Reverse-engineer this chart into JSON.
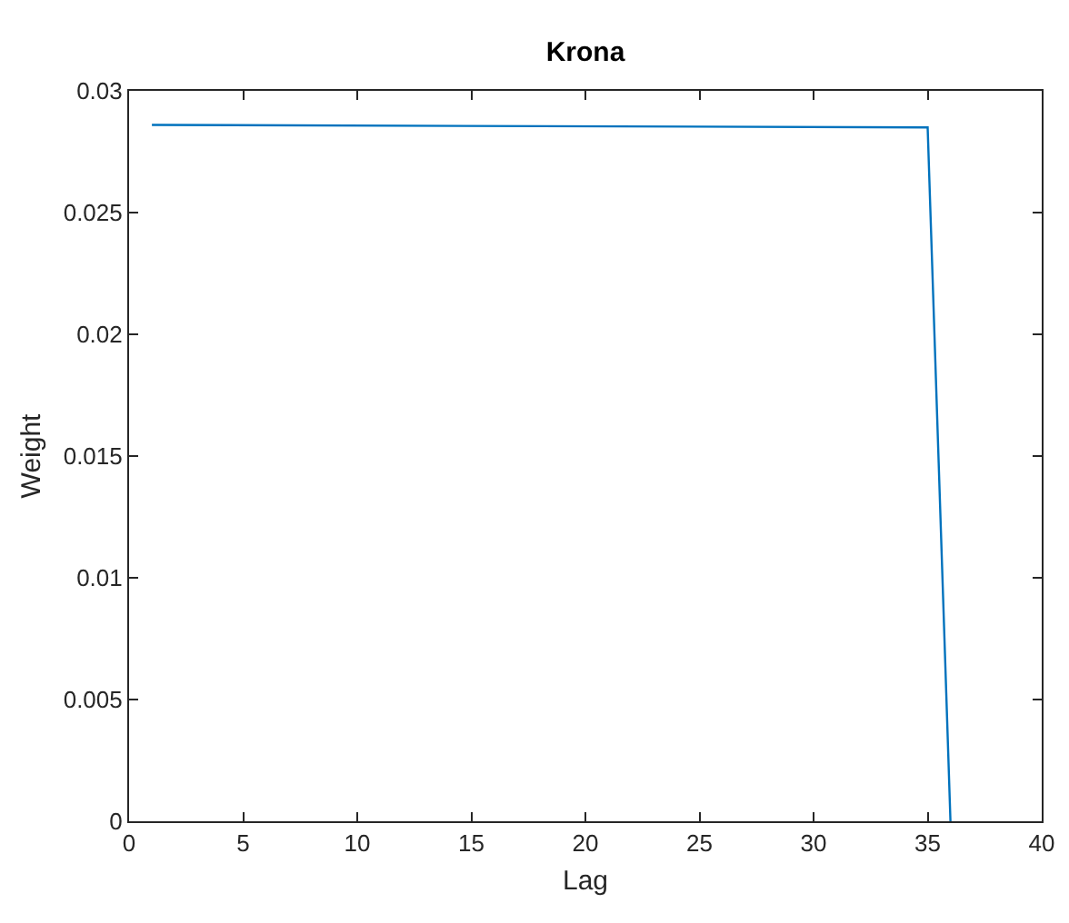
{
  "chart_data": {
    "type": "line",
    "title": "Krona",
    "xlabel": "Lag",
    "ylabel": "Weight",
    "x": [
      1,
      35,
      36
    ],
    "series": [
      {
        "color": "#0072bd",
        "values": [
          0.0286,
          0.0285,
          0
        ]
      }
    ],
    "xlim": [
      0,
      40
    ],
    "xticks": [
      0,
      5,
      10,
      15,
      20,
      25,
      30,
      35,
      40
    ],
    "ylim": [
      0,
      0.03
    ],
    "yticks": [
      0,
      0.005,
      0.01,
      0.015,
      0.02,
      0.025,
      0.03
    ],
    "marker": "none",
    "line_style": "solid"
  }
}
